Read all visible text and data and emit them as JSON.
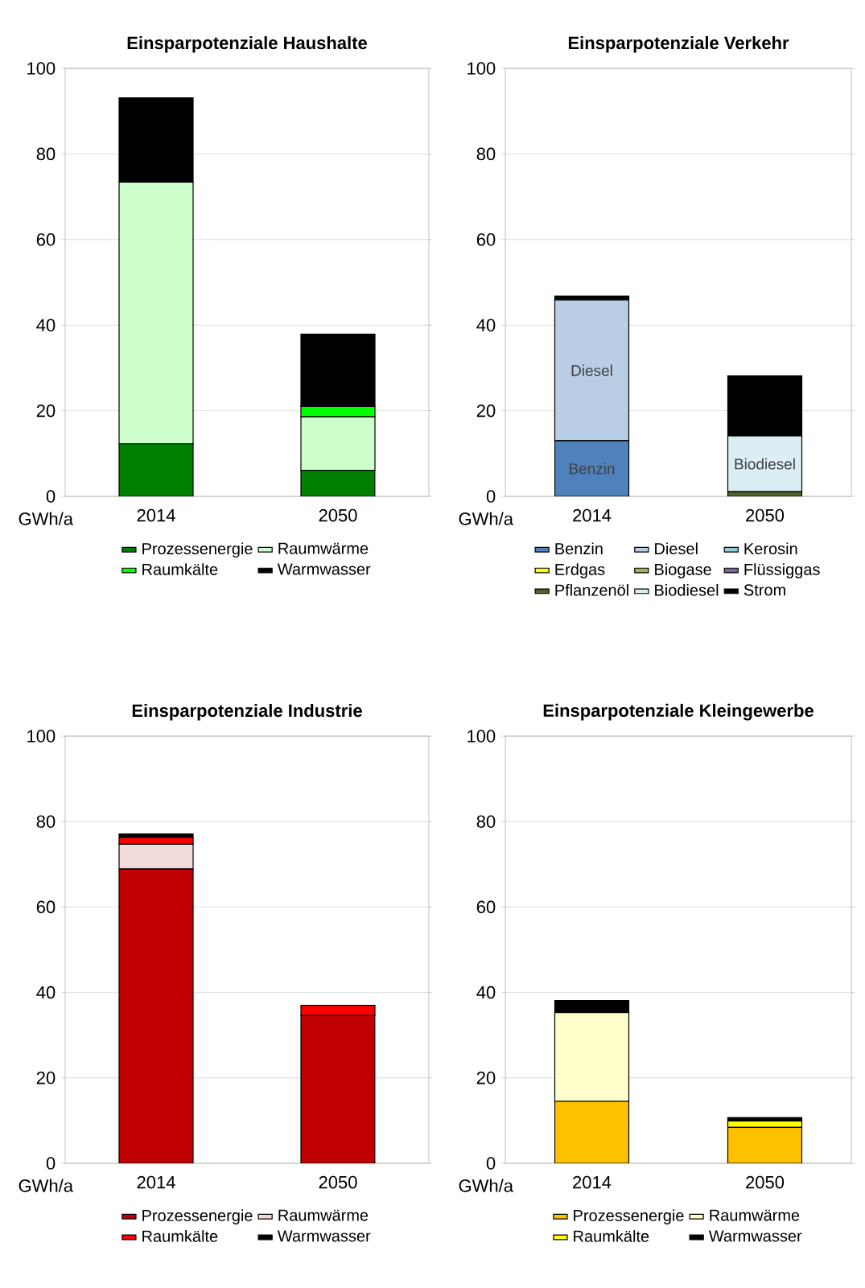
{
  "chart_data": [
    {
      "type": "bar",
      "title": "Einsparpotenziale Haushalte",
      "ylabel": "GWh/a",
      "categories": [
        "2014",
        "2050"
      ],
      "stacked": true,
      "ylim": [
        0,
        100
      ],
      "yticks": [
        0,
        20,
        40,
        60,
        80,
        100
      ],
      "grid": "y",
      "legend": "bottom",
      "series": [
        {
          "name": "Prozessenergie",
          "color": "#008000",
          "values": [
            12.3,
            6.1
          ]
        },
        {
          "name": "Raumwärme",
          "color": "#ccffcc",
          "values": [
            61.1,
            12.5
          ]
        },
        {
          "name": "Raumkälte",
          "color": "#00ff00",
          "values": [
            0,
            2.4
          ]
        },
        {
          "name": "Warmwasser",
          "color": "#000000",
          "values": [
            19.7,
            16.9
          ]
        }
      ]
    },
    {
      "type": "bar",
      "title": "Einsparpotenziale Verkehr",
      "ylabel": "GWh/a",
      "categories": [
        "2014",
        "2050"
      ],
      "stacked": true,
      "ylim": [
        0,
        100
      ],
      "yticks": [
        0,
        20,
        40,
        60,
        80,
        100
      ],
      "grid": "y",
      "legend": "bottom",
      "series": [
        {
          "name": "Benzin",
          "color": "#4f81bd",
          "values": [
            13.0,
            0
          ]
        },
        {
          "name": "Diesel",
          "color": "#b9cde5",
          "values": [
            32.9,
            0
          ]
        },
        {
          "name": "Kerosin",
          "color": "#93cddd",
          "values": [
            0,
            0
          ]
        },
        {
          "name": "Erdgas",
          "color": "#ffff00",
          "values": [
            0,
            0
          ]
        },
        {
          "name": "Biogase",
          "color": "#9bbb59",
          "values": [
            0,
            0
          ]
        },
        {
          "name": "Flüssiggas",
          "color": "#8064a2",
          "values": [
            0,
            0
          ]
        },
        {
          "name": "Pflanzenöl",
          "color": "#4f6228",
          "values": [
            0,
            1.1
          ]
        },
        {
          "name": "Biodiesel",
          "color": "#dbeef4",
          "values": [
            0,
            13.0
          ]
        },
        {
          "name": "Strom",
          "color": "#000000",
          "values": [
            0.9,
            14.1
          ]
        }
      ],
      "annotations": [
        "Diesel",
        "Benzin",
        "Biodiesel"
      ]
    },
    {
      "type": "bar",
      "title": "Einsparpotenziale Industrie",
      "ylabel": "GWh/a",
      "categories": [
        "2014",
        "2050"
      ],
      "stacked": true,
      "ylim": [
        0,
        100
      ],
      "yticks": [
        0,
        20,
        40,
        60,
        80,
        100
      ],
      "grid": "y",
      "legend": "bottom",
      "series": [
        {
          "name": "Prozessenergie",
          "color": "#c00000",
          "values": [
            68.9,
            34.6
          ]
        },
        {
          "name": "Raumwärme",
          "color": "#f2dcdb",
          "values": [
            5.8,
            0
          ]
        },
        {
          "name": "Raumkälte",
          "color": "#ff0000",
          "values": [
            1.6,
            2.4
          ]
        },
        {
          "name": "Warmwasser",
          "color": "#000000",
          "values": [
            0.8,
            0
          ]
        }
      ]
    },
    {
      "type": "bar",
      "title": "Einsparpotenziale Kleingewerbe",
      "ylabel": "GWh/a",
      "categories": [
        "2014",
        "2050"
      ],
      "stacked": true,
      "ylim": [
        0,
        100
      ],
      "yticks": [
        0,
        20,
        40,
        60,
        80,
        100
      ],
      "grid": "y",
      "legend": "bottom",
      "series": [
        {
          "name": "Prozessenergie",
          "color": "#ffc000",
          "values": [
            14.5,
            8.4
          ]
        },
        {
          "name": "Raumwärme",
          "color": "#ffffcc",
          "values": [
            20.8,
            0
          ]
        },
        {
          "name": "Raumkälte",
          "color": "#ffff00",
          "values": [
            0,
            1.5
          ]
        },
        {
          "name": "Warmwasser",
          "color": "#000000",
          "values": [
            2.8,
            0.8
          ]
        }
      ]
    }
  ]
}
